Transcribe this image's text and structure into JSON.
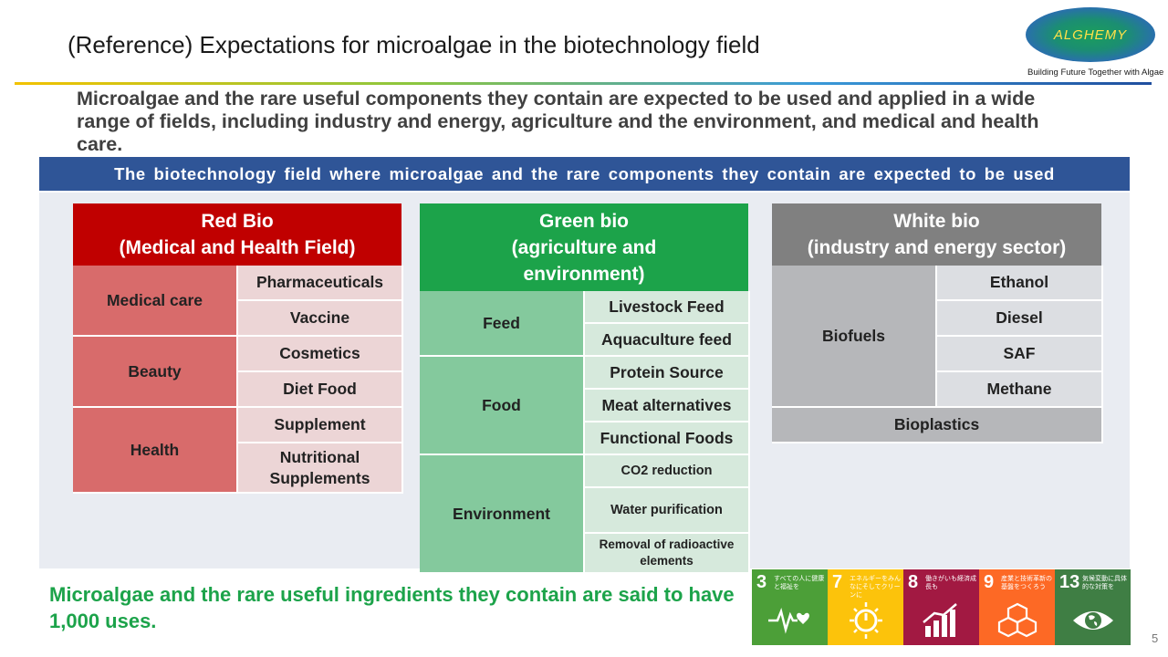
{
  "title": "(Reference) Expectations for microalgae in the biotechnology field",
  "logo": {
    "name": "ALGHEMY",
    "tagline": "Building Future Together with Algae"
  },
  "intro": "Microalgae and the rare useful components they contain are expected to be used and applied in a wide range of fields, including industry and energy, agriculture and the environment, and medical and health care.",
  "banner": "The biotechnology field where microalgae and the rare components they contain are expected to be used",
  "colors": {
    "red": "#c00000",
    "green": "#1ca34a",
    "gray": "#808080",
    "banner": "#2f5597"
  },
  "red_bio": {
    "title_line1": "Red Bio",
    "title_line2": "(Medical and Health Field)",
    "groups": [
      {
        "category": "Medical care",
        "items": [
          "Pharmaceuticals",
          "Vaccine"
        ]
      },
      {
        "category": "Beauty",
        "items": [
          "Cosmetics",
          "Diet Food"
        ]
      },
      {
        "category": "Health",
        "items": [
          "Supplement",
          "Nutritional Supplements"
        ]
      }
    ]
  },
  "green_bio": {
    "title_line1": "Green bio",
    "title_line2": "(agriculture and",
    "title_line3": "environment)",
    "groups": [
      {
        "category": "Feed",
        "items": [
          "Livestock Feed",
          "Aquaculture feed"
        ]
      },
      {
        "category": "Food",
        "items": [
          "Protein Source",
          "Meat alternatives",
          "Functional Foods"
        ]
      },
      {
        "category": "Environment",
        "items": [
          "CO2 reduction",
          "Water purification",
          "Removal of radioactive elements"
        ]
      }
    ]
  },
  "white_bio": {
    "title_line1": "White bio",
    "title_line2": "(industry and energy sector)",
    "groups": [
      {
        "category": "Biofuels",
        "items": [
          "Ethanol",
          "Diesel",
          "SAF",
          "Methane"
        ]
      }
    ],
    "full_row": "Bioplastics"
  },
  "footer": "Microalgae and the rare useful ingredients they contain are said to have 1,000 uses.",
  "sdgs": [
    {
      "num": "3",
      "text": "すべての人に健康と福祉を",
      "color": "#4c9f38",
      "icon": "heartbeat-icon"
    },
    {
      "num": "7",
      "text": "エネルギーをみんなにそしてクリーンに",
      "color": "#fcc30b",
      "icon": "sun-power-icon"
    },
    {
      "num": "8",
      "text": "働きがいも経済成長も",
      "color": "#a21942",
      "icon": "growth-chart-icon"
    },
    {
      "num": "9",
      "text": "産業と技術革新の基盤をつくろう",
      "color": "#fd6925",
      "icon": "cubes-icon"
    },
    {
      "num": "13",
      "text": "気候変動に具体的な対策を",
      "color": "#3f7e44",
      "icon": "eye-globe-icon"
    }
  ],
  "page_number": "5"
}
